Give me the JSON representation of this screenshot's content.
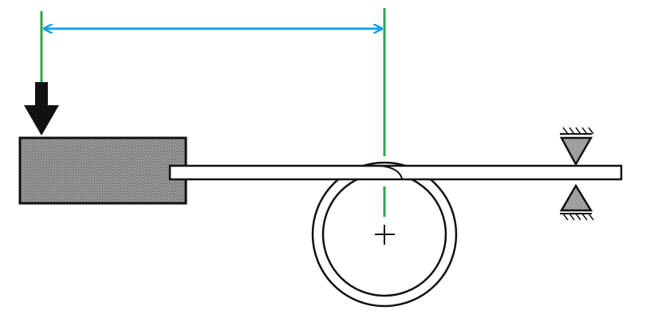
{
  "diagram": {
    "colors": {
      "background": "#ffffff",
      "outline": "#111111",
      "block_fill": "#8a8a8a",
      "support_fill": "#9a9a9a",
      "rod_fill": "#ffffff",
      "dimension_arrow": "#1aa0e6",
      "reference_line": "#2aa84a",
      "load_arrow": "#111111"
    },
    "elements": {
      "load": "downward-force-arrow",
      "block": "sliding-block",
      "rod": "thin-strip",
      "roller": "coiled-roller",
      "center_mark": "plus-icon",
      "support": "triangle-pin-supports",
      "dimension": "horizontal-dimension-arrow"
    }
  }
}
